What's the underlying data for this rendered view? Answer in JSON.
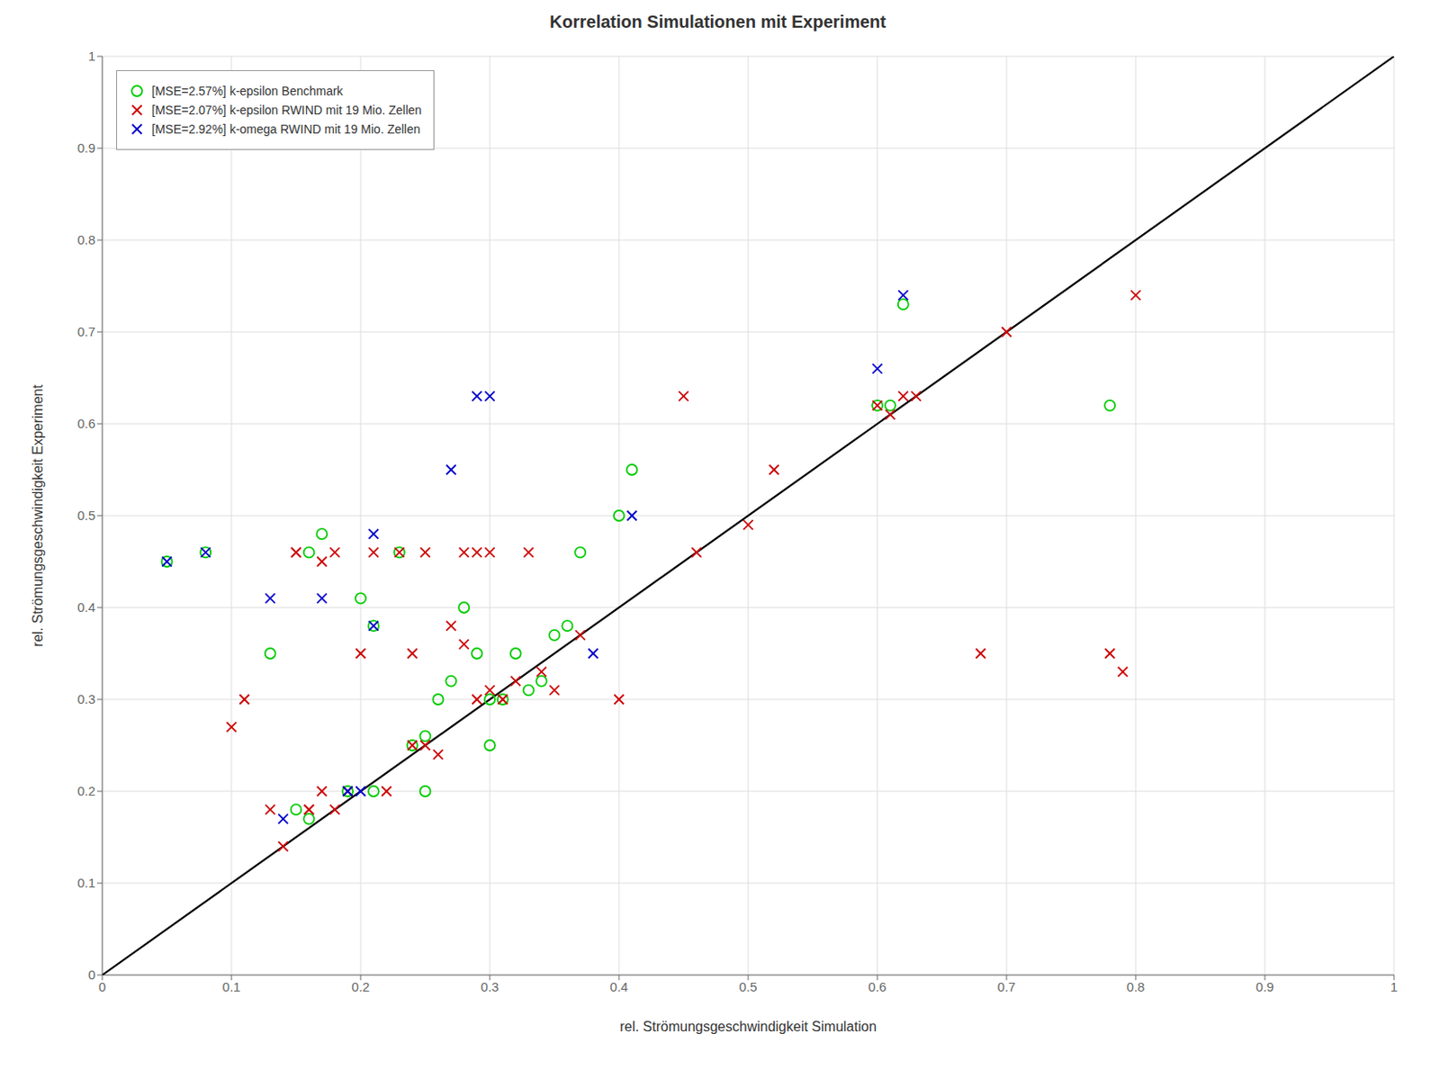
{
  "chart_data": {
    "type": "scatter",
    "title": "Korrelation Simulationen mit Experiment",
    "xlabel": "rel. Strömungsgeschwindigkeit Simulation",
    "ylabel": "rel. Strömungsgeschwindigkeit Experiment",
    "xlim": [
      0,
      1
    ],
    "ylim": [
      0,
      1
    ],
    "xticks": [
      0,
      0.1,
      0.2,
      0.3,
      0.4,
      0.5,
      0.6,
      0.7,
      0.8,
      0.9,
      1
    ],
    "yticks": [
      0,
      0.1,
      0.2,
      0.3,
      0.4,
      0.5,
      0.6,
      0.7,
      0.8,
      0.9,
      1
    ],
    "grid": true,
    "legend": "upper left",
    "series": [
      {
        "type": "line",
        "color": "#000000",
        "line_style": "solid",
        "x": [
          0,
          1
        ],
        "values": [
          0,
          1
        ]
      },
      {
        "name": "[MSE=2.57%] k-epsilon Benchmark",
        "color": "#00cc00",
        "marker": "o",
        "x": [
          0.05,
          0.08,
          0.13,
          0.15,
          0.16,
          0.16,
          0.17,
          0.19,
          0.2,
          0.21,
          0.21,
          0.23,
          0.24,
          0.25,
          0.25,
          0.26,
          0.27,
          0.28,
          0.29,
          0.3,
          0.3,
          0.31,
          0.32,
          0.33,
          0.34,
          0.35,
          0.36,
          0.37,
          0.4,
          0.41,
          0.6,
          0.61,
          0.62,
          0.78
        ],
        "values": [
          0.45,
          0.46,
          0.35,
          0.18,
          0.17,
          0.46,
          0.48,
          0.2,
          0.41,
          0.38,
          0.2,
          0.46,
          0.25,
          0.26,
          0.2,
          0.3,
          0.32,
          0.4,
          0.35,
          0.25,
          0.3,
          0.3,
          0.35,
          0.31,
          0.32,
          0.37,
          0.38,
          0.46,
          0.5,
          0.55,
          0.62,
          0.62,
          0.73,
          0.62
        ]
      },
      {
        "name": "[MSE=2.07%] k-epsilon RWIND mit 19 Mio. Zellen",
        "color": "#cc0000",
        "marker": "x",
        "x": [
          0.1,
          0.11,
          0.13,
          0.14,
          0.15,
          0.15,
          0.16,
          0.16,
          0.17,
          0.17,
          0.18,
          0.18,
          0.19,
          0.2,
          0.21,
          0.22,
          0.23,
          0.24,
          0.24,
          0.25,
          0.25,
          0.26,
          0.27,
          0.28,
          0.28,
          0.29,
          0.29,
          0.3,
          0.3,
          0.31,
          0.32,
          0.33,
          0.34,
          0.35,
          0.37,
          0.4,
          0.45,
          0.46,
          0.5,
          0.52,
          0.6,
          0.61,
          0.62,
          0.63,
          0.68,
          0.7,
          0.78,
          0.79,
          0.8
        ],
        "values": [
          0.27,
          0.3,
          0.18,
          0.14,
          0.46,
          0.46,
          0.18,
          0.18,
          0.45,
          0.2,
          0.46,
          0.18,
          0.2,
          0.35,
          0.46,
          0.2,
          0.46,
          0.25,
          0.35,
          0.46,
          0.25,
          0.24,
          0.38,
          0.36,
          0.46,
          0.3,
          0.46,
          0.31,
          0.46,
          0.3,
          0.32,
          0.46,
          0.33,
          0.31,
          0.37,
          0.3,
          0.63,
          0.46,
          0.49,
          0.55,
          0.62,
          0.61,
          0.63,
          0.63,
          0.35,
          0.7,
          0.35,
          0.33,
          0.74
        ]
      },
      {
        "name": "[MSE=2.92%] k-omega RWIND mit 19 Mio. Zellen",
        "color": "#0000cc",
        "marker": "x",
        "x": [
          0.05,
          0.08,
          0.13,
          0.14,
          0.17,
          0.19,
          0.2,
          0.21,
          0.21,
          0.27,
          0.29,
          0.3,
          0.38,
          0.41,
          0.6,
          0.62
        ],
        "values": [
          0.45,
          0.46,
          0.41,
          0.17,
          0.41,
          0.2,
          0.2,
          0.38,
          0.48,
          0.55,
          0.63,
          0.63,
          0.35,
          0.5,
          0.66,
          0.74
        ]
      }
    ]
  }
}
